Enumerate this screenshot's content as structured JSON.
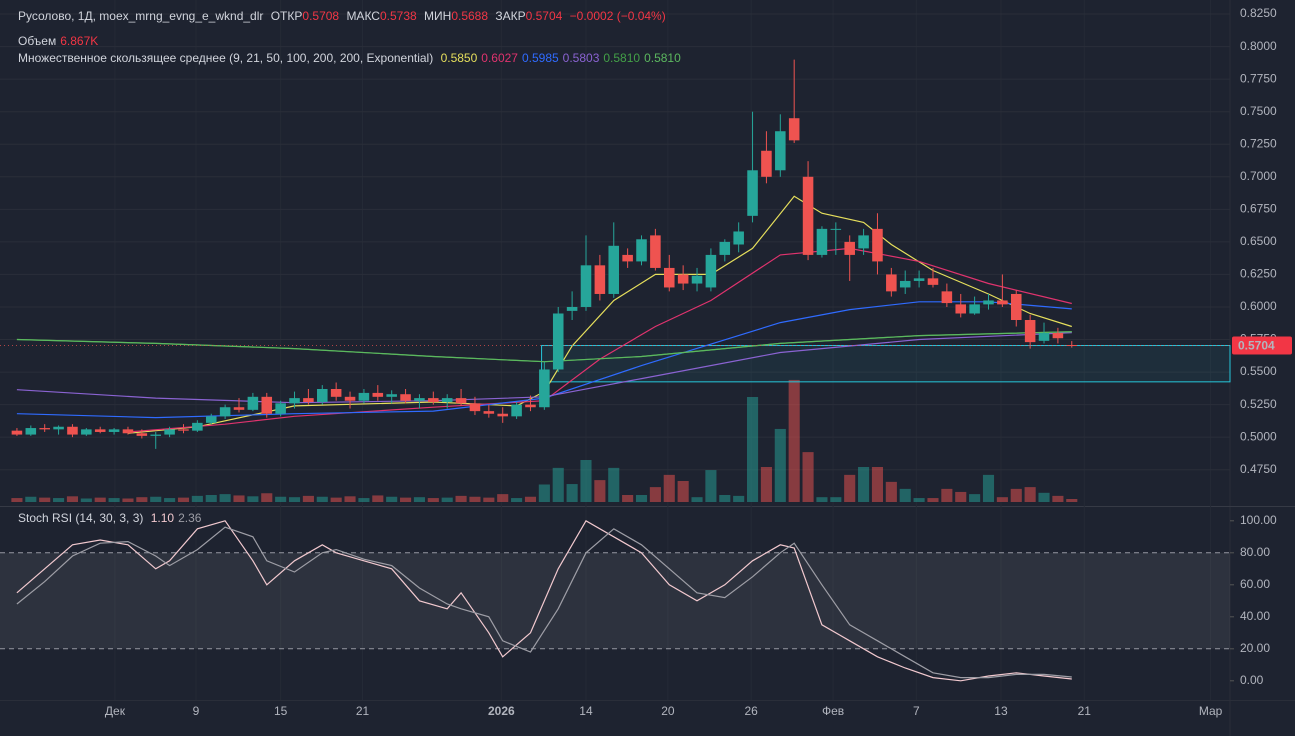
{
  "chart_data": [
    {
      "type": "candlestick",
      "title": "Русолово, 1Д, moex_mrng_evng_e_wknd_dlr",
      "ohlc_labels": [
        "ОТКР",
        "МАКС",
        "МИН",
        "ЗАКР"
      ],
      "change": {
        "value": -0.0002,
        "label": "−0.0002 (−0.04%)"
      },
      "volume_title": "Объем",
      "ma_title": "Множественное скользящее среднее (9, 21, 50, 100, 200, 200, Exponential)",
      "up_color": "#26a69a",
      "down_color": "#ef5350",
      "xlim": [
        -1.22,
        87.4
      ],
      "xticks": [
        {
          "value": 7.06,
          "label": "Дек"
        },
        {
          "value": 12.9,
          "label": "9"
        },
        {
          "value": 19.0,
          "label": "15"
        },
        {
          "value": 24.9,
          "label": "21"
        },
        {
          "value": 34.9,
          "label": "2026"
        },
        {
          "value": 41.0,
          "label": "14"
        },
        {
          "value": 46.9,
          "label": "20"
        },
        {
          "value": 52.9,
          "label": "26"
        },
        {
          "value": 58.8,
          "label": "Фев"
        },
        {
          "value": 64.8,
          "label": "7"
        },
        {
          "value": 70.9,
          "label": "13"
        },
        {
          "value": 76.9,
          "label": "21"
        },
        {
          "value": 86.0,
          "label": "Мар"
        }
      ],
      "ylim": [
        0.4479,
        0.8358
      ],
      "yticks": [
        {
          "value": 0.825,
          "label": "0.8250"
        },
        {
          "value": 0.8,
          "label": "0.8000"
        },
        {
          "value": 0.775,
          "label": "0.7750"
        },
        {
          "value": 0.75,
          "label": "0.7500"
        },
        {
          "value": 0.725,
          "label": "0.7250"
        },
        {
          "value": 0.7,
          "label": "0.7000"
        },
        {
          "value": 0.675,
          "label": "0.6750"
        },
        {
          "value": 0.65,
          "label": "0.6500"
        },
        {
          "value": 0.625,
          "label": "0.6250"
        },
        {
          "value": 0.6,
          "label": "0.6000"
        },
        {
          "value": 0.575,
          "label": "0.5750"
        },
        {
          "value": 0.55,
          "label": "0.5500"
        },
        {
          "value": 0.525,
          "label": "0.5250"
        },
        {
          "value": 0.5,
          "label": "0.5000"
        },
        {
          "value": 0.475,
          "label": "0.4750"
        }
      ],
      "grid": true,
      "open": [
        0.505,
        0.502,
        0.507,
        0.506,
        0.508,
        0.502,
        0.506,
        0.504,
        0.506,
        0.503,
        0.501,
        0.502,
        0.506,
        0.505,
        0.511,
        0.516,
        0.523,
        0.521,
        0.531,
        0.518,
        0.526,
        0.53,
        0.527,
        0.537,
        0.531,
        0.528,
        0.534,
        0.531,
        0.533,
        0.528,
        0.53,
        0.527,
        0.53,
        0.526,
        0.52,
        0.518,
        0.516,
        0.525,
        0.523,
        0.552,
        0.597,
        0.6,
        0.632,
        0.61,
        0.64,
        0.635,
        0.655,
        0.63,
        0.625,
        0.618,
        0.615,
        0.64,
        0.648,
        0.67,
        0.72,
        0.705,
        0.745,
        0.7,
        0.64,
        0.66,
        0.65,
        0.645,
        0.66,
        0.625,
        0.615,
        0.62,
        0.622,
        0.612,
        0.602,
        0.595,
        0.602,
        0.605,
        0.61,
        0.59,
        0.574,
        0.58,
        0.5708
      ],
      "high": [
        0.507,
        0.509,
        0.51,
        0.509,
        0.51,
        0.507,
        0.508,
        0.507,
        0.508,
        0.506,
        0.504,
        0.508,
        0.51,
        0.513,
        0.518,
        0.525,
        0.53,
        0.534,
        0.534,
        0.528,
        0.535,
        0.537,
        0.54,
        0.542,
        0.535,
        0.537,
        0.54,
        0.536,
        0.537,
        0.533,
        0.535,
        0.533,
        0.537,
        0.531,
        0.525,
        0.523,
        0.527,
        0.532,
        0.558,
        0.6,
        0.612,
        0.655,
        0.64,
        0.665,
        0.645,
        0.655,
        0.66,
        0.64,
        0.632,
        0.63,
        0.645,
        0.652,
        0.665,
        0.75,
        0.735,
        0.748,
        0.79,
        0.712,
        0.662,
        0.665,
        0.655,
        0.66,
        0.672,
        0.63,
        0.628,
        0.628,
        0.63,
        0.618,
        0.61,
        0.608,
        0.61,
        0.625,
        0.613,
        0.594,
        0.588,
        0.584,
        0.5738
      ],
      "low": [
        0.501,
        0.501,
        0.504,
        0.502,
        0.5,
        0.501,
        0.503,
        0.502,
        0.502,
        0.499,
        0.491,
        0.5,
        0.503,
        0.504,
        0.51,
        0.514,
        0.519,
        0.52,
        0.515,
        0.516,
        0.522,
        0.525,
        0.525,
        0.528,
        0.522,
        0.526,
        0.528,
        0.526,
        0.526,
        0.522,
        0.525,
        0.522,
        0.524,
        0.517,
        0.515,
        0.511,
        0.514,
        0.52,
        0.521,
        0.55,
        0.59,
        0.597,
        0.605,
        0.607,
        0.63,
        0.632,
        0.628,
        0.612,
        0.613,
        0.612,
        0.612,
        0.635,
        0.642,
        0.665,
        0.695,
        0.7,
        0.726,
        0.636,
        0.638,
        0.64,
        0.62,
        0.64,
        0.625,
        0.608,
        0.61,
        0.615,
        0.615,
        0.6,
        0.592,
        0.594,
        0.598,
        0.6,
        0.585,
        0.568,
        0.572,
        0.572,
        0.5688
      ],
      "close": [
        0.502,
        0.507,
        0.506,
        0.508,
        0.502,
        0.506,
        0.504,
        0.506,
        0.503,
        0.501,
        0.502,
        0.506,
        0.505,
        0.511,
        0.516,
        0.523,
        0.521,
        0.531,
        0.518,
        0.526,
        0.53,
        0.527,
        0.537,
        0.531,
        0.528,
        0.534,
        0.531,
        0.533,
        0.528,
        0.53,
        0.527,
        0.53,
        0.526,
        0.52,
        0.518,
        0.516,
        0.525,
        0.523,
        0.552,
        0.595,
        0.6,
        0.632,
        0.61,
        0.647,
        0.635,
        0.652,
        0.63,
        0.615,
        0.618,
        0.624,
        0.64,
        0.65,
        0.658,
        0.705,
        0.7,
        0.735,
        0.728,
        0.64,
        0.66,
        0.66,
        0.64,
        0.655,
        0.635,
        0.612,
        0.62,
        0.622,
        0.617,
        0.603,
        0.595,
        0.602,
        0.605,
        0.602,
        0.59,
        0.573,
        0.58,
        0.576,
        0.5704
      ],
      "volume_ylim": [
        0,
        400000
      ],
      "volume": [
        9000,
        12000,
        10000,
        9000,
        13000,
        8000,
        10000,
        9000,
        8000,
        11000,
        12000,
        9000,
        10000,
        14000,
        16000,
        18000,
        15000,
        13000,
        20000,
        12000,
        11000,
        14000,
        12000,
        10000,
        13000,
        9000,
        15000,
        12000,
        10000,
        11000,
        9000,
        10000,
        14000,
        12000,
        10000,
        18000,
        9000,
        12000,
        40000,
        78000,
        41000,
        96000,
        50000,
        78000,
        16000,
        16000,
        34000,
        62000,
        48000,
        11000,
        73000,
        16000,
        14000,
        240000,
        80000,
        167000,
        279000,
        114000,
        11000,
        11000,
        62000,
        80000,
        80000,
        46000,
        30000,
        9000,
        9000,
        30000,
        23000,
        18000,
        62000,
        11000,
        30000,
        34000,
        21000,
        14000,
        6867
      ],
      "volume_value_labels": [
        null,
        null,
        null,
        null,
        null,
        null,
        null,
        null,
        null,
        null,
        null,
        null,
        null,
        null,
        null,
        null,
        null,
        null,
        null,
        null,
        null,
        null,
        null,
        null,
        null,
        null,
        null,
        null,
        null,
        null,
        null,
        null,
        null,
        null,
        null,
        null,
        null,
        null,
        null,
        null,
        null,
        null,
        null,
        null,
        null,
        null,
        null,
        null,
        null,
        null,
        null,
        null,
        null,
        null,
        null,
        null,
        null,
        null,
        null,
        null,
        null,
        null,
        null,
        null,
        null,
        null,
        null,
        null,
        null,
        null,
        null,
        null,
        null,
        null,
        null,
        null,
        "6.867K"
      ],
      "box": {
        "x0": 37.8,
        "ylim": [
          0.5425,
          0.5704
        ]
      },
      "series": [
        {
          "color": "#e6df5c",
          "legend_label": "0.5850",
          "x": [
            8,
            13,
            20,
            30,
            36,
            38,
            40,
            43,
            46,
            50,
            53,
            56,
            58,
            61,
            63,
            66,
            70,
            73,
            76
          ],
          "values": [
            0.503,
            0.508,
            0.524,
            0.527,
            0.524,
            0.535,
            0.57,
            0.605,
            0.625,
            0.625,
            0.645,
            0.685,
            0.672,
            0.665,
            0.648,
            0.628,
            0.61,
            0.595,
            0.585
          ]
        },
        {
          "color": "#e0336e",
          "legend_label": "0.6027",
          "x": [
            8,
            15,
            20,
            30,
            38,
            42,
            46,
            50,
            55,
            60,
            65,
            70,
            76
          ],
          "values": [
            0.504,
            0.51,
            0.516,
            0.523,
            0.528,
            0.56,
            0.585,
            0.605,
            0.64,
            0.645,
            0.635,
            0.618,
            0.6027
          ]
        },
        {
          "color": "#2f6bff",
          "legend_label": "0.5985",
          "x": [
            0,
            10,
            20,
            30,
            38,
            45,
            55,
            60,
            65,
            70,
            76
          ],
          "values": [
            0.518,
            0.515,
            0.518,
            0.52,
            0.53,
            0.555,
            0.588,
            0.598,
            0.604,
            0.604,
            0.5985
          ]
        },
        {
          "color": "#8a63d2",
          "legend_label": "0.5803",
          "x": [
            0,
            10,
            20,
            30,
            38,
            45,
            55,
            65,
            76
          ],
          "values": [
            0.5365,
            0.53,
            0.5265,
            0.528,
            0.531,
            0.545,
            0.565,
            0.575,
            0.5803
          ]
        },
        {
          "color": "#43a047",
          "legend_label": "0.5810",
          "x": [
            0,
            10,
            20,
            30,
            38,
            45,
            55,
            65,
            76
          ],
          "values": [
            0.575,
            0.572,
            0.568,
            0.562,
            0.558,
            0.562,
            0.572,
            0.578,
            0.581
          ]
        },
        {
          "color": "#5cb85f",
          "legend_label": "0.5810",
          "x": [
            0,
            10,
            20,
            30,
            38,
            45,
            55,
            65,
            76
          ],
          "values": [
            0.575,
            0.572,
            0.568,
            0.562,
            0.558,
            0.562,
            0.572,
            0.578,
            0.581
          ]
        }
      ]
    },
    {
      "type": "line",
      "title": "Stoch RSI (14, 30, 3, 3)",
      "ylim": [
        -12,
        108
      ],
      "yticks": [
        {
          "value": 100,
          "label": "100.00"
        },
        {
          "value": 80,
          "label": "80.00"
        },
        {
          "value": 60,
          "label": "60.00"
        },
        {
          "value": 40,
          "label": "40.00"
        },
        {
          "value": 20,
          "label": "20.00"
        },
        {
          "value": 0,
          "label": "0.00"
        }
      ],
      "bands": [
        20,
        80
      ],
      "x": [
        0,
        2,
        4,
        6,
        8,
        10,
        11,
        13,
        15,
        17,
        18,
        20,
        22,
        23,
        25,
        27,
        29,
        31,
        32,
        34,
        35,
        37,
        39,
        41,
        43,
        45,
        47,
        49,
        51,
        53,
        55,
        56,
        58,
        60,
        62,
        64,
        66,
        68,
        70,
        72,
        74,
        76
      ],
      "series": [
        {
          "color": "#f2c9cf",
          "legend_label": "1.10",
          "values": [
            55,
            70,
            85,
            88,
            85,
            70,
            75,
            95,
            100,
            75,
            60,
            75,
            85,
            80,
            75,
            70,
            50,
            45,
            55,
            30,
            15,
            30,
            70,
            100,
            90,
            80,
            60,
            50,
            60,
            75,
            85,
            83,
            35,
            25,
            15,
            8,
            2,
            0,
            3,
            5,
            3,
            1.1
          ]
        },
        {
          "color": "#9e9ea6",
          "legend_label": "2.36",
          "values": [
            48,
            62,
            78,
            86,
            87,
            78,
            72,
            82,
            96,
            90,
            75,
            68,
            80,
            82,
            76,
            72,
            58,
            48,
            45,
            40,
            25,
            18,
            45,
            80,
            95,
            85,
            70,
            55,
            52,
            65,
            80,
            86,
            60,
            35,
            25,
            15,
            5,
            2,
            2,
            4,
            4,
            2.36
          ]
        }
      ]
    }
  ]
}
